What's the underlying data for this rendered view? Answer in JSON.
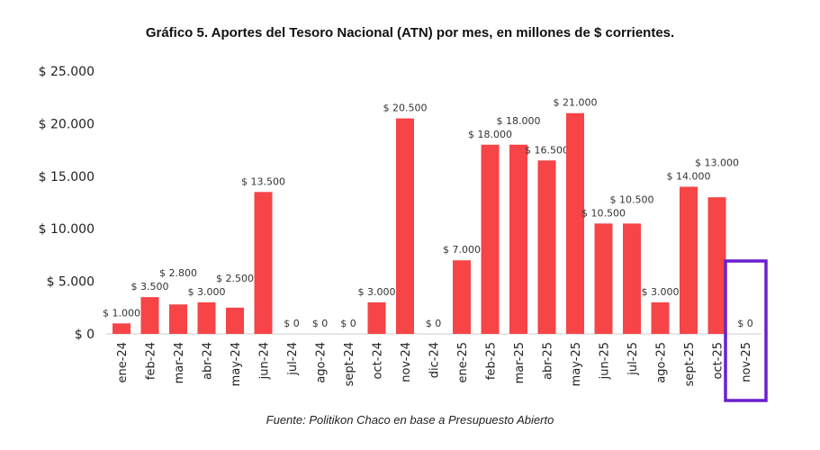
{
  "chart_data": {
    "type": "bar",
    "title": "Gráfico 5. Aportes del Tesoro Nacional (ATN) por mes, en millones de $ corrientes.",
    "source": "Fuente: Politikon Chaco en base a Presupuesto Abierto",
    "categories": [
      "ene-24",
      "feb-24",
      "mar-24",
      "abr-24",
      "may-24",
      "jun-24",
      "jul-24",
      "ago-24",
      "sept-24",
      "oct-24",
      "nov-24",
      "dic-24",
      "ene-25",
      "feb-25",
      "mar-25",
      "abr-25",
      "may-25",
      "jun-25",
      "jul-25",
      "ago-25",
      "sept-25",
      "oct-25",
      "nov-25"
    ],
    "values": [
      1000,
      3500,
      2800,
      3000,
      2500,
      13500,
      0,
      0,
      0,
      3000,
      20500,
      0,
      7000,
      18000,
      18000,
      16500,
      21000,
      10500,
      10500,
      3000,
      14000,
      13000,
      0
    ],
    "data_labels": [
      "$ 1.000",
      "$ 3.500",
      "$ 2.800",
      "$ 3.000",
      "$ 2.500",
      "$ 13.500",
      "$ 0",
      "$ 0",
      "$ 0",
      "$ 3.000",
      "$ 20.500",
      "$ 0",
      "$ 7.000",
      "$ 18.000",
      "$ 18.000",
      "$ 16.500",
      "$ 21.000",
      "$ 10.500",
      "$ 10.500",
      "$ 3.000",
      "$ 14.000",
      "$ 13.000",
      "$ 0"
    ],
    "yticks": [
      "$ 0",
      "$ 5.000",
      "$ 10.000",
      "$ 15.000",
      "$ 20.000",
      "$ 25.000"
    ],
    "ylim": [
      0,
      25000
    ],
    "grid": false,
    "bar_color": "#f64447",
    "highlight": {
      "category": "nov-25",
      "color": "#6a1fd1"
    }
  }
}
